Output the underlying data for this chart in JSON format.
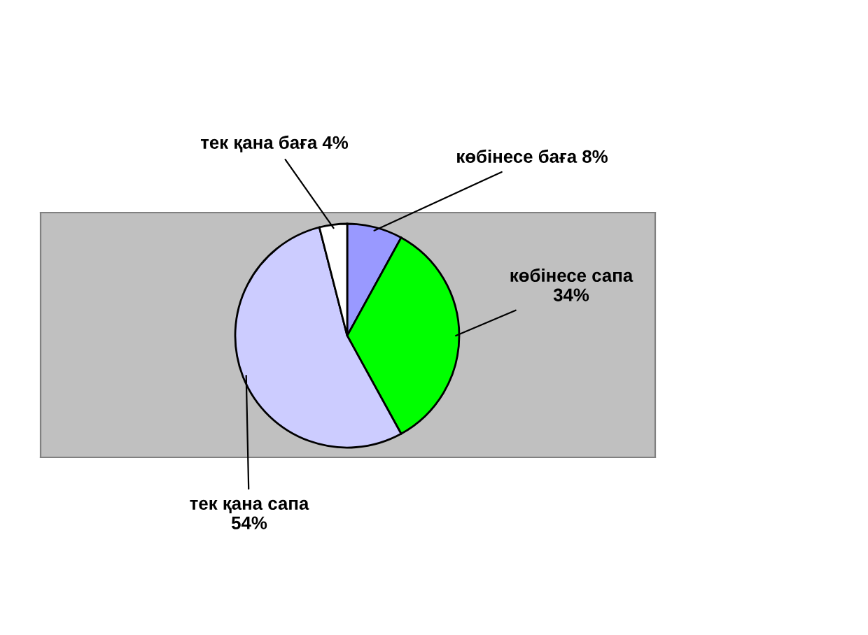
{
  "chart_data": {
    "type": "pie",
    "categories": [
      "көбінесе баға",
      "көбінесе сапа",
      "тек қана сапа",
      "тек қана баға"
    ],
    "values": [
      8,
      34,
      54,
      4
    ],
    "colors": [
      "#9999ff",
      "#00ff00",
      "#ccccff",
      "#ffffff"
    ],
    "value_labels": [
      "8%",
      "34%",
      "54%",
      "4%"
    ]
  }
}
